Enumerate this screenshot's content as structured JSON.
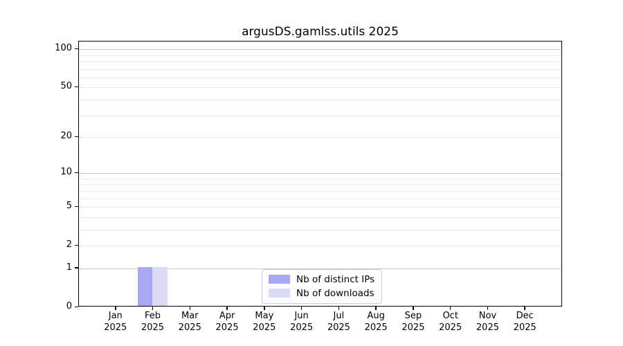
{
  "title": "argusDS.gamlss.utils 2025",
  "chart_data": {
    "type": "bar",
    "title": "argusDS.gamlss.utils 2025",
    "categories": [
      {
        "month": "Jan",
        "year": "2025"
      },
      {
        "month": "Feb",
        "year": "2025"
      },
      {
        "month": "Mar",
        "year": "2025"
      },
      {
        "month": "Apr",
        "year": "2025"
      },
      {
        "month": "May",
        "year": "2025"
      },
      {
        "month": "Jun",
        "year": "2025"
      },
      {
        "month": "Jul",
        "year": "2025"
      },
      {
        "month": "Aug",
        "year": "2025"
      },
      {
        "month": "Sep",
        "year": "2025"
      },
      {
        "month": "Oct",
        "year": "2025"
      },
      {
        "month": "Nov",
        "year": "2025"
      },
      {
        "month": "Dec",
        "year": "2025"
      }
    ],
    "series": [
      {
        "name": "Nb of distinct IPs",
        "color": "#a8a8f2",
        "values": [
          0,
          1,
          0,
          0,
          0,
          0,
          0,
          0,
          0,
          0,
          0,
          0
        ]
      },
      {
        "name": "Nb of downloads",
        "color": "#dbdbf8",
        "values": [
          0,
          1,
          0,
          0,
          0,
          0,
          0,
          0,
          0,
          0,
          0,
          0
        ]
      }
    ],
    "xlabel": "",
    "ylabel": "",
    "yscale": "log1p",
    "ylim": [
      0,
      115
    ],
    "yticks": [
      0,
      1,
      2,
      5,
      10,
      20,
      50,
      100
    ],
    "gridlines": {
      "major": [
        1,
        10,
        100
      ],
      "minor": [
        2,
        3,
        4,
        5,
        6,
        7,
        8,
        9,
        20,
        30,
        40,
        50,
        60,
        70,
        80,
        90
      ]
    },
    "grid_color_major": "#c9c9c9",
    "grid_color_minor": "#ebebeb",
    "legend_position": "bottom-center"
  },
  "legend": {
    "items": [
      {
        "label": "Nb of distinct IPs"
      },
      {
        "label": "Nb of downloads"
      }
    ]
  }
}
